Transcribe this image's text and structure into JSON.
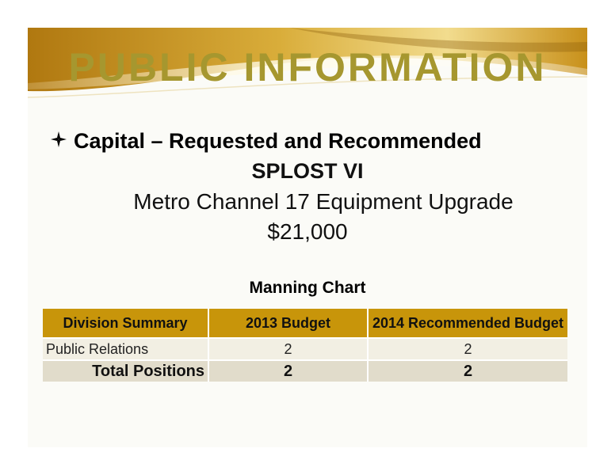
{
  "header": {
    "title": "PUBLIC INFORMATION"
  },
  "content": {
    "bullet_icon": "diamond-bullet-icon",
    "heading": "Capital – Requested and Recommended",
    "program": "SPLOST VI",
    "project": "Metro Channel 17 Equipment Upgrade",
    "amount": "$21,000"
  },
  "manning_chart": {
    "title": "Manning Chart",
    "columns": [
      "Division Summary",
      "2013 Budget",
      "2014 Recommended Budget"
    ],
    "rows": [
      {
        "division": "Public Relations",
        "budget_2013": "2",
        "budget_2014": "2"
      }
    ],
    "total": {
      "label": "Total Positions",
      "budget_2013": "2",
      "budget_2014": "2"
    }
  },
  "colors": {
    "title": "#a6972f",
    "header_fill": "#c8950a",
    "row_fill": "#f2efe3",
    "total_fill": "#e1dccb"
  }
}
